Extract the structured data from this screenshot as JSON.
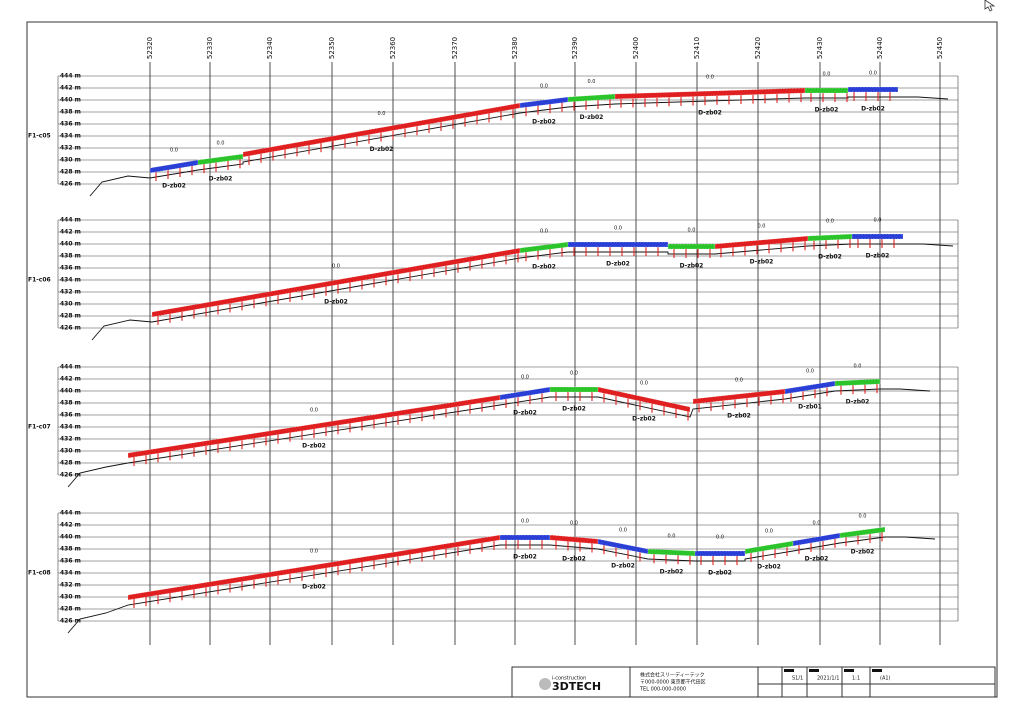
{
  "stations": [
    "52320",
    "52330",
    "52340",
    "52350",
    "52360",
    "52370",
    "52380",
    "52390",
    "52400",
    "52410",
    "52420",
    "52430",
    "52440",
    "52450"
  ],
  "elevations": [
    "444 m",
    "442 m",
    "440 m",
    "438 m",
    "436 m",
    "434 m",
    "432 m",
    "430 m",
    "428 m",
    "426 m"
  ],
  "panels": [
    {
      "label": "F1-c05",
      "tags": [
        "D-zb02",
        "D-zb02",
        "D-zb02",
        "D-zb02",
        "D-zb02",
        "D-zb02",
        "D-zb02",
        "D-zb02"
      ],
      "values": [
        "0.0",
        "0.0",
        "0.0",
        "0.0",
        "0.0",
        "0.0",
        "0.0",
        "0.0"
      ]
    },
    {
      "label": "F1-c06",
      "tags": [
        "D-zb02",
        "D-zb02",
        "D-zb02",
        "D-zb02",
        "D-zb02",
        "D-zb02",
        "D-zb02"
      ],
      "values": [
        "0.0",
        "0.0",
        "0.0",
        "0.0",
        "0.0",
        "0.0",
        "0.0"
      ]
    },
    {
      "label": "F1-c07",
      "tags": [
        "D-zb02",
        "D-zb02",
        "D-zb02",
        "D-zb02",
        "D-zb02",
        "D-zb01",
        "D-zb02"
      ],
      "values": [
        "0.0",
        "0.0",
        "0.0",
        "0.0",
        "0.0",
        "0.0",
        "0.0"
      ]
    },
    {
      "label": "F1-c08",
      "tags": [
        "D-zb02",
        "D-zb02",
        "D-zb02",
        "D-zb02",
        "D-zb02",
        "D-zb02",
        "D-zb02",
        "D-zb02",
        "D-zb02"
      ],
      "values": [
        "0.0",
        "0.0",
        "0.0",
        "0.0",
        "0.0",
        "0.0",
        "0.0",
        "0.0",
        "0.0"
      ]
    }
  ],
  "title_block": {
    "brand_small": "i-construction",
    "brand": "3DTECH",
    "lines": [
      "株式会社スリーディーテック",
      "〒000-0000 東京都千代田区",
      "TEL 000-000-0000"
    ],
    "cells": [
      "S1/1",
      "2021/1/1",
      "1:1",
      "(A1)"
    ]
  }
}
